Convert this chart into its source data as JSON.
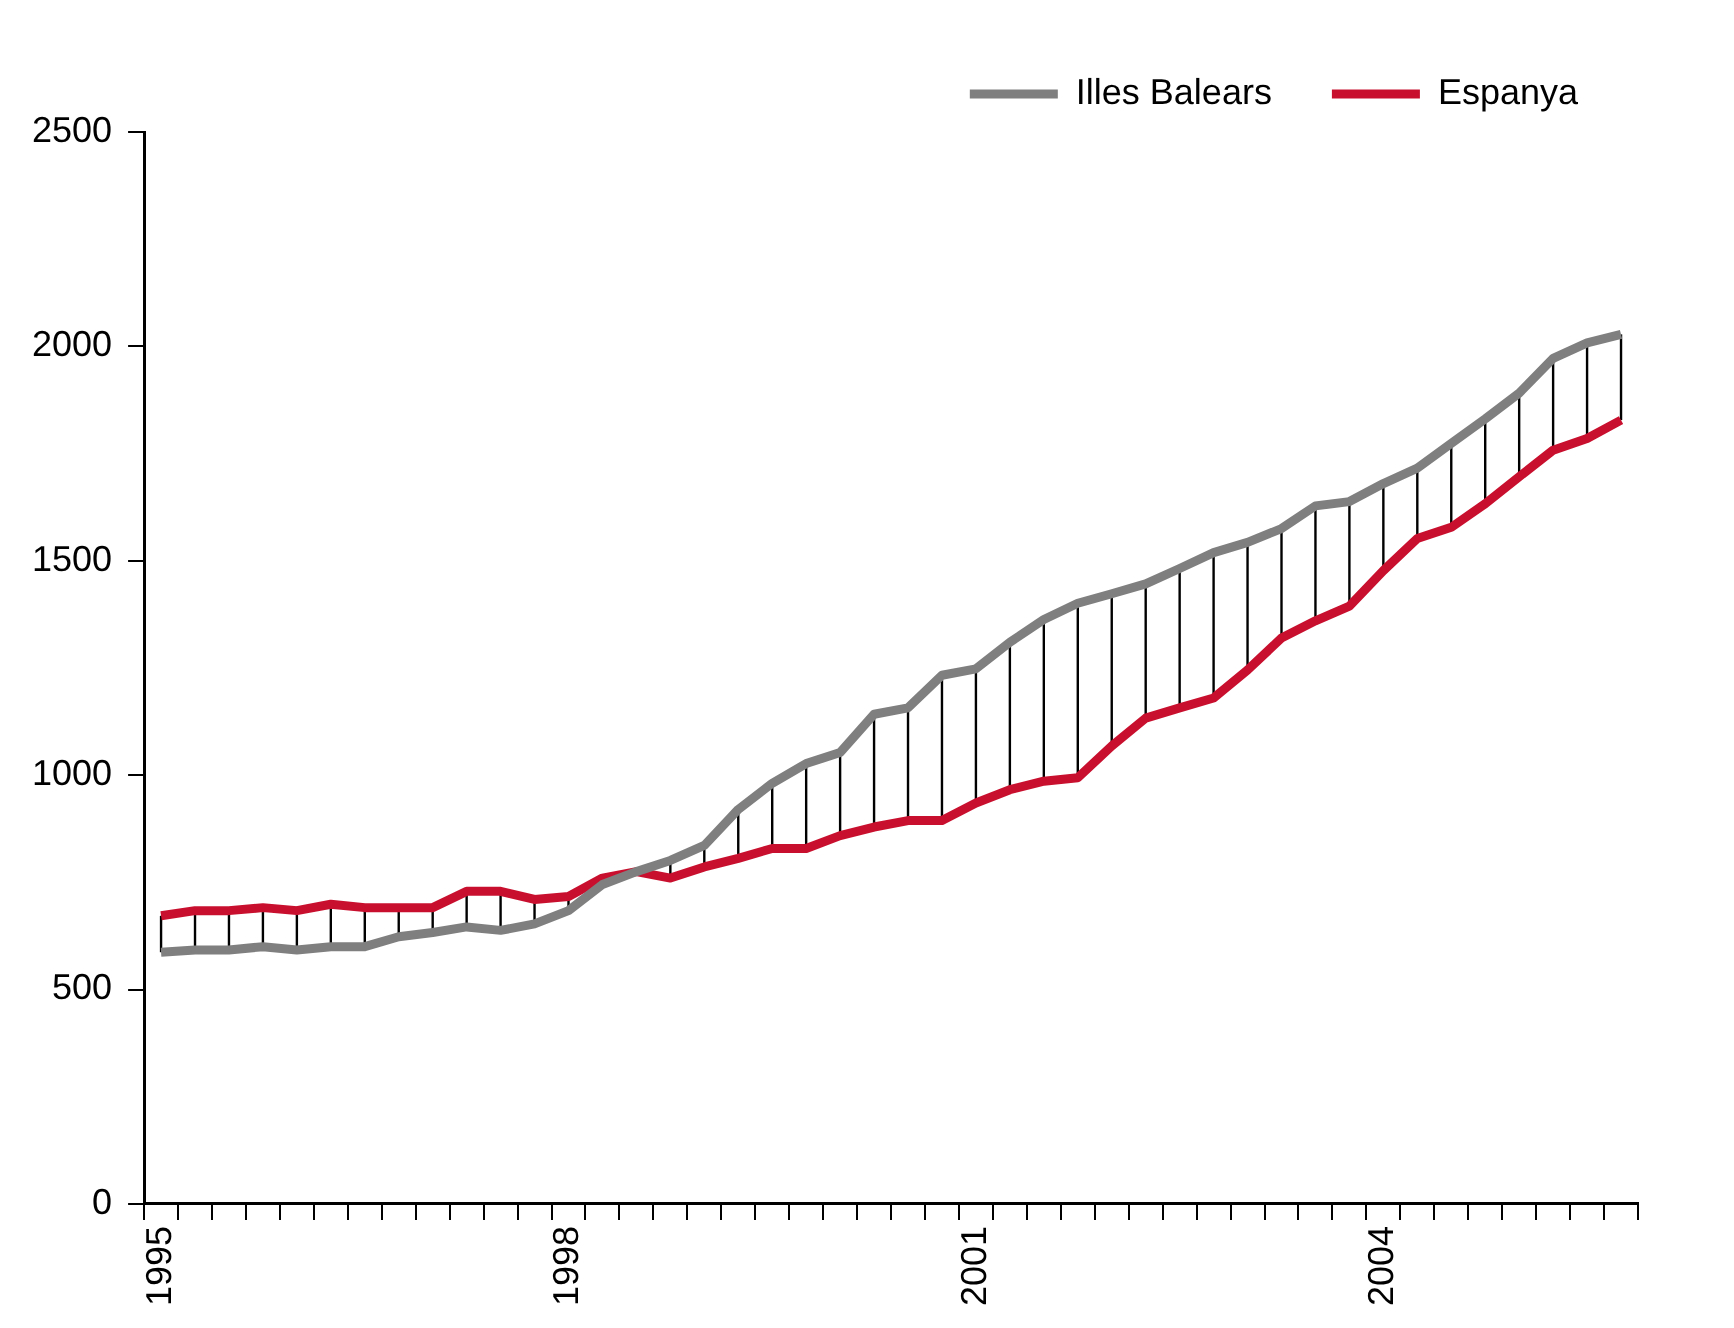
{
  "chart_data": {
    "type": "line",
    "categories": [
      "1995",
      null,
      null,
      null,
      null,
      null,
      null,
      null,
      null,
      null,
      null,
      null,
      "1998",
      null,
      null,
      null,
      null,
      null,
      null,
      null,
      null,
      null,
      null,
      null,
      "2001",
      null,
      null,
      null,
      null,
      null,
      null,
      null,
      null,
      null,
      null,
      null,
      "2004",
      null,
      null,
      null,
      null,
      null,
      null,
      null
    ],
    "series": [
      {
        "name": "Illes Balears",
        "color": "#7f7f7f",
        "values": [
          587,
          592,
          592,
          600,
          592,
          600,
          600,
          623,
          633,
          646,
          638,
          653,
          684,
          745,
          775,
          801,
          836,
          920,
          981,
          1027,
          1053,
          1142,
          1157,
          1233,
          1248,
          1310,
          1363,
          1401,
          1423,
          1446,
          1482,
          1519,
          1543,
          1575,
          1628,
          1638,
          1680,
          1716,
          1774,
          1831,
          1891,
          1972,
          2008,
          2028
        ]
      },
      {
        "name": "Espanya",
        "color": "#c8102e",
        "values": [
          672,
          684,
          684,
          691,
          684,
          699,
          691,
          691,
          691,
          729,
          729,
          710,
          717,
          760,
          775,
          760,
          786,
          806,
          829,
          829,
          859,
          879,
          894,
          894,
          935,
          966,
          986,
          994,
          1068,
          1133,
          1157,
          1180,
          1245,
          1320,
          1360,
          1394,
          1477,
          1552,
          1578,
          1633,
          1696,
          1758,
          1785,
          1828
        ],
        "errors": [
          [
            587,
            672
          ],
          [
            592,
            684
          ],
          [
            592,
            684
          ],
          [
            600,
            691
          ],
          [
            592,
            684
          ],
          [
            600,
            699
          ],
          [
            600,
            691
          ],
          [
            623,
            691
          ],
          [
            633,
            691
          ],
          [
            646,
            729
          ],
          [
            638,
            729
          ],
          [
            653,
            710
          ],
          [
            684,
            717
          ],
          [
            745,
            760
          ],
          [
            775,
            775
          ],
          [
            760,
            801
          ],
          [
            786,
            836
          ],
          [
            806,
            920
          ],
          [
            829,
            981
          ],
          [
            829,
            1027
          ],
          [
            859,
            1053
          ],
          [
            879,
            1142
          ],
          [
            894,
            1157
          ],
          [
            894,
            1233
          ],
          [
            935,
            1248
          ],
          [
            966,
            1310
          ],
          [
            986,
            1363
          ],
          [
            994,
            1401
          ],
          [
            1068,
            1423
          ],
          [
            1133,
            1446
          ],
          [
            1157,
            1482
          ],
          [
            1180,
            1519
          ],
          [
            1245,
            1543
          ],
          [
            1320,
            1575
          ],
          [
            1360,
            1628
          ],
          [
            1394,
            1638
          ],
          [
            1477,
            1680
          ],
          [
            1552,
            1716
          ],
          [
            1578,
            1774
          ],
          [
            1633,
            1831
          ],
          [
            1696,
            1891
          ],
          [
            1758,
            1972
          ],
          [
            1785,
            2008
          ],
          [
            1828,
            2028
          ]
        ]
      }
    ],
    "ylim": [
      0,
      2500
    ],
    "yticks": [
      0,
      500,
      1000,
      1500,
      2000,
      2500
    ],
    "grid": false,
    "legend": "top right",
    "marker": "none",
    "line_style": "solid"
  }
}
